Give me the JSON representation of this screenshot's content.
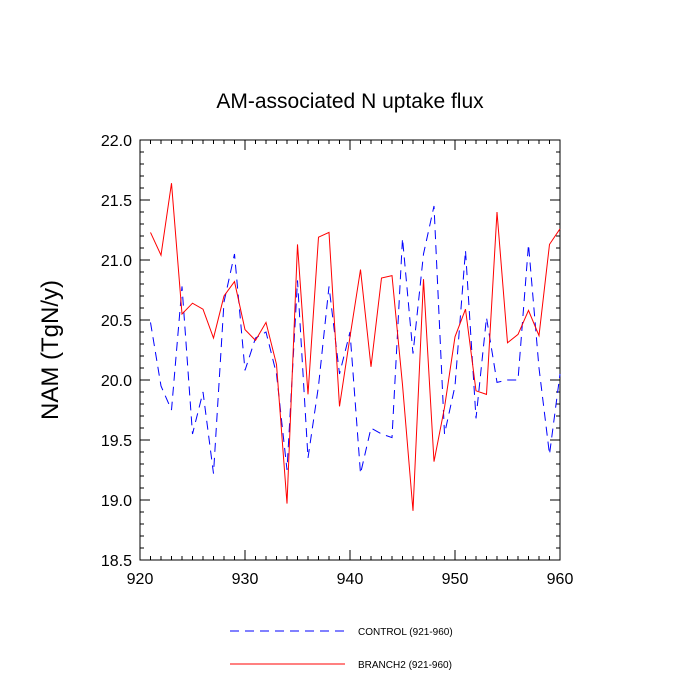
{
  "chart_data": {
    "type": "line",
    "title": "AM-associated N uptake flux",
    "ylabel": "NAM  (TgN/y)",
    "xlabel": "",
    "xlim": [
      920,
      960
    ],
    "ylim": [
      18.5,
      22.0
    ],
    "x_ticks": [
      920,
      930,
      940,
      950,
      960
    ],
    "y_ticks": [
      "18.5",
      "19.0",
      "19.5",
      "20.0",
      "20.5",
      "21.0",
      "21.5",
      "22.0"
    ],
    "legend_position": "bottom",
    "grid": false,
    "x": [
      921,
      922,
      923,
      924,
      925,
      926,
      927,
      928,
      929,
      930,
      931,
      932,
      933,
      934,
      935,
      936,
      937,
      938,
      939,
      940,
      941,
      942,
      943,
      944,
      945,
      946,
      947,
      948,
      949,
      950,
      951,
      952,
      953,
      954,
      955,
      956,
      957,
      958,
      959,
      960
    ],
    "series": [
      {
        "name": "CONTROL (921-960)",
        "color": "#0000ff",
        "dash": "dashed",
        "values": [
          20.48,
          19.95,
          19.75,
          20.78,
          19.55,
          19.9,
          19.22,
          20.65,
          21.05,
          20.08,
          20.35,
          20.4,
          20.05,
          19.25,
          20.83,
          19.35,
          19.95,
          20.78,
          20.05,
          20.4,
          19.22,
          19.6,
          19.55,
          19.52,
          21.18,
          20.22,
          21.05,
          21.45,
          19.55,
          19.95,
          21.08,
          19.68,
          20.52,
          19.98,
          20.0,
          20.0,
          21.13,
          20.1,
          19.38,
          20.05
        ]
      },
      {
        "name": "BRANCH2 (921-960)",
        "color": "#ff0000",
        "dash": "solid",
        "values": [
          21.23,
          21.04,
          21.64,
          20.55,
          20.64,
          20.59,
          20.35,
          20.7,
          20.82,
          20.42,
          20.33,
          20.48,
          20.13,
          18.97,
          21.13,
          19.88,
          21.19,
          21.23,
          19.78,
          20.36,
          20.92,
          20.11,
          20.85,
          20.87,
          19.96,
          18.91,
          20.84,
          19.32,
          19.77,
          20.36,
          20.59,
          19.91,
          19.88,
          21.4,
          20.31,
          20.38,
          20.58,
          20.37,
          21.13,
          21.26
        ]
      }
    ]
  }
}
